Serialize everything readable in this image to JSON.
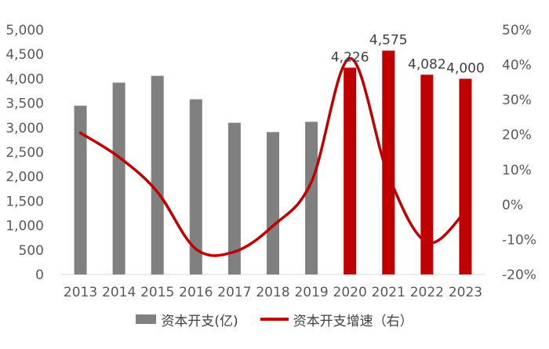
{
  "chart_data": {
    "type": "bar",
    "categories": [
      "2013",
      "2014",
      "2015",
      "2016",
      "2017",
      "2018",
      "2019",
      "2020",
      "2021",
      "2022",
      "2023"
    ],
    "series": [
      {
        "name": "资本开支(亿)",
        "type": "bar",
        "axis": "left",
        "values": [
          3450,
          3920,
          4060,
          3580,
          3100,
          2910,
          3120,
          4226,
          4575,
          4082,
          4000
        ],
        "colors": [
          "#808080",
          "#808080",
          "#808080",
          "#808080",
          "#808080",
          "#808080",
          "#808080",
          "#c00000",
          "#c00000",
          "#c00000",
          "#c00000"
        ],
        "data_labels": [
          "",
          "",
          "",
          "",
          "",
          "",
          "",
          "4,226",
          "4,575",
          "4,082",
          "4,000"
        ]
      },
      {
        "name": "资本开支增速（右）",
        "type": "line",
        "axis": "right",
        "color": "#c00000",
        "values": [
          20.5,
          13.6,
          3.6,
          -12.7,
          -13.5,
          -6.1,
          6.5,
          41.8,
          8.3,
          -10.8,
          -2.0
        ]
      }
    ],
    "y_left": {
      "ylim": [
        0,
        5000
      ],
      "ticks": [
        0,
        500,
        1000,
        1500,
        2000,
        2500,
        3000,
        3500,
        4000,
        4500,
        5000
      ],
      "tick_labels": [
        "0",
        "500",
        "1,000",
        "1,500",
        "2,000",
        "2,500",
        "3,000",
        "3,500",
        "4,000",
        "4,500",
        "5,000"
      ]
    },
    "y_right": {
      "ylim": [
        -20,
        50
      ],
      "ticks": [
        -20,
        -10,
        0,
        10,
        20,
        30,
        40,
        50
      ],
      "tick_labels": [
        "-20%",
        "-10%",
        "0%",
        "10%",
        "20%",
        "30%",
        "40%",
        "50%"
      ]
    },
    "grid": false,
    "legend_position": "bottom"
  },
  "legend": {
    "bar_label": "资本开支(亿)",
    "line_label": "资本开支增速（右）",
    "bar_color": "#808080",
    "line_color": "#c00000"
  }
}
